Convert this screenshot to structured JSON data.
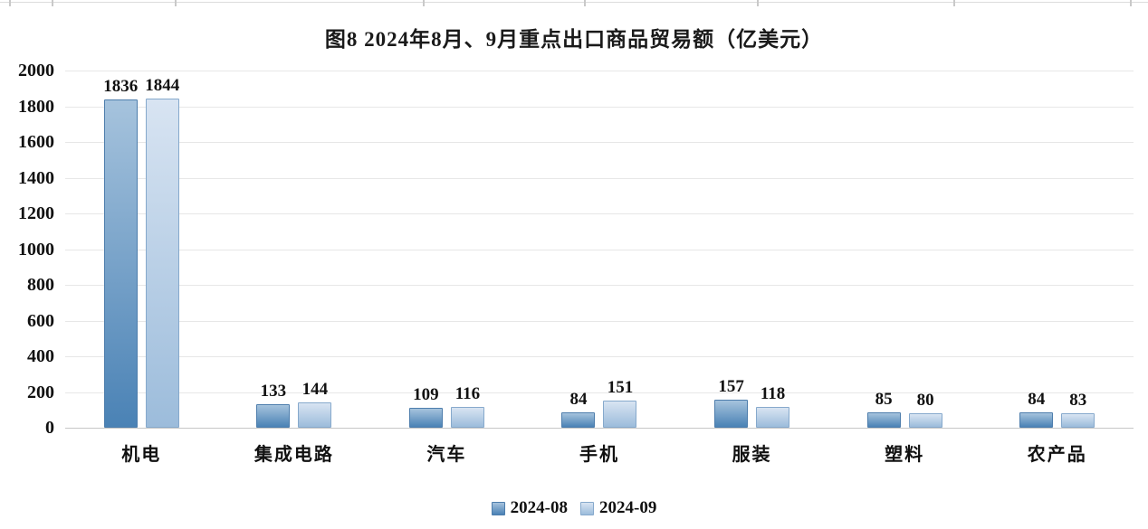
{
  "chart_data": {
    "type": "bar",
    "title": "图8 2024年8月、9月重点出口商品贸易额（亿美元）",
    "categories": [
      "机电",
      "集成电路",
      "汽车",
      "手机",
      "服装",
      "塑料",
      "农产品"
    ],
    "series": [
      {
        "name": "2024-08",
        "values": [
          1836,
          133,
          109,
          84,
          157,
          85,
          84
        ],
        "color_top": "#a6c3dd",
        "color_bottom": "#4a82b5",
        "border_color": "#4d7dac"
      },
      {
        "name": "2024-09",
        "values": [
          1844,
          144,
          116,
          151,
          118,
          80,
          83
        ],
        "color_top": "#d8e4f2",
        "color_bottom": "#9cbcdb",
        "border_color": "#86a9cc"
      }
    ],
    "ylim": [
      0,
      2000
    ],
    "yticks": [
      0,
      200,
      400,
      600,
      800,
      1000,
      1200,
      1400,
      1600,
      1800,
      2000
    ],
    "grid": true,
    "legend_position": "bottom"
  }
}
